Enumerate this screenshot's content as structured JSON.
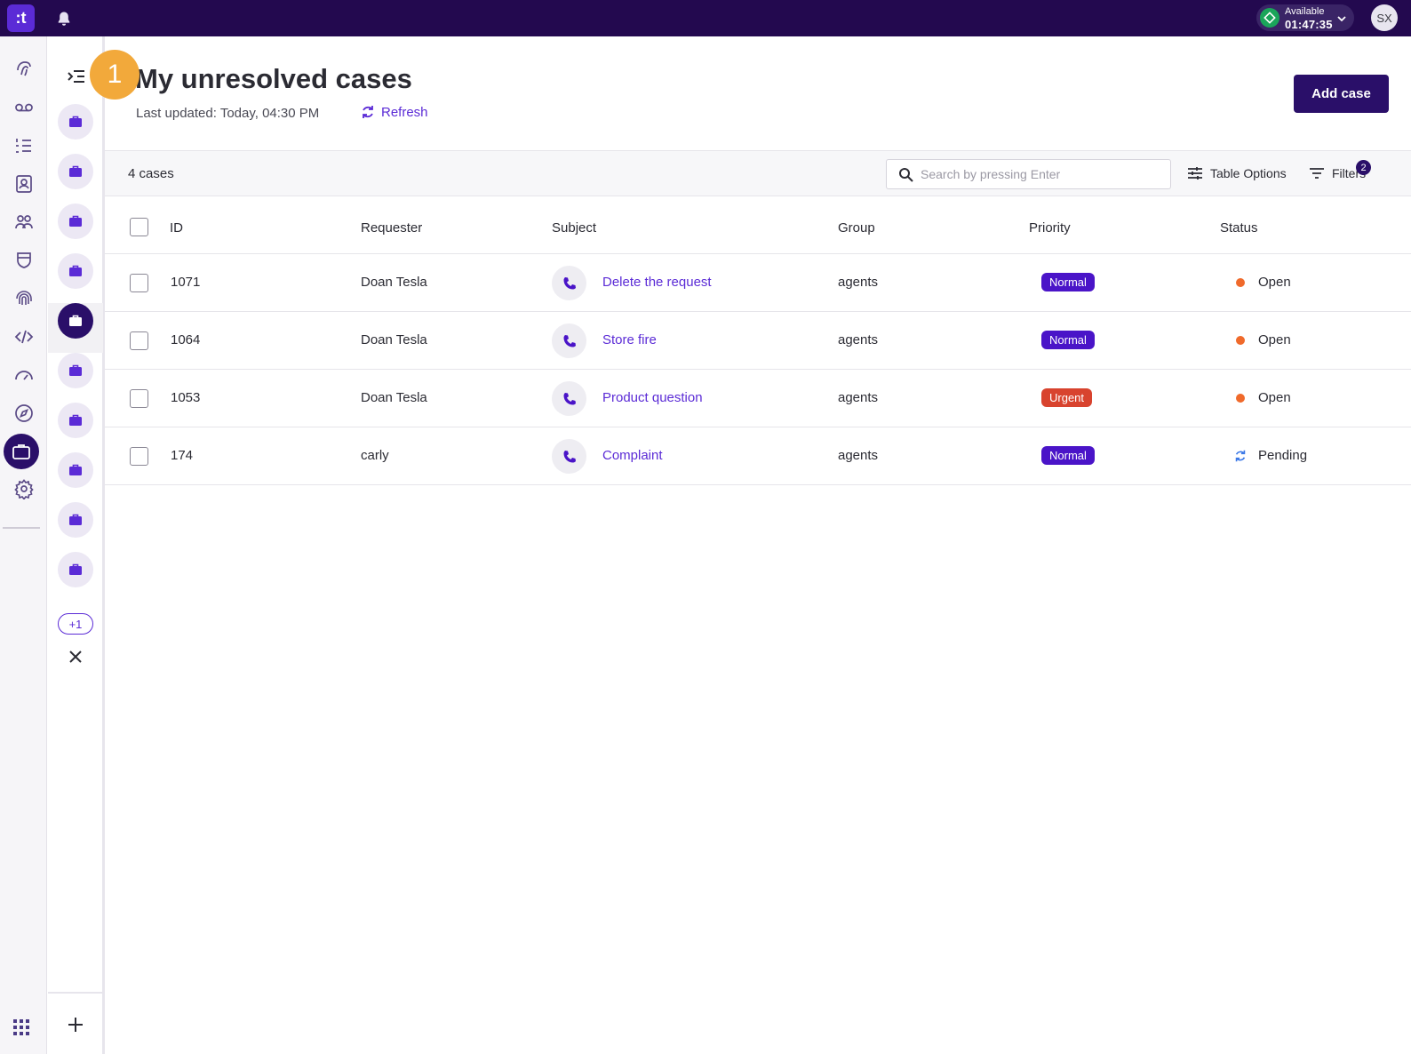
{
  "topbar": {
    "logo_text": ":t",
    "agent_status": "Available",
    "timer": "01:47:35",
    "avatar_initials": "SX"
  },
  "rail": {
    "icons": [
      "contacts-fingerprint-icon",
      "voicemail-icon",
      "list-icon",
      "contact-book-icon",
      "agents-icon",
      "shield-icon",
      "fingerprint-icon",
      "code-icon",
      "speedometer-icon",
      "compass-icon",
      "briefcase-icon",
      "gear-icon",
      "apps-grid-icon"
    ],
    "active": "briefcase-icon"
  },
  "panel": {
    "case_tab_count": 10,
    "active_tab_index": 4,
    "more_label": "+1"
  },
  "step_badge": "1",
  "header": {
    "title": "My unresolved cases",
    "last_updated_label": "Last updated:",
    "last_updated_value": "Today, 04:30 PM",
    "refresh_label": "Refresh",
    "add_case_label": "Add case"
  },
  "toolbar": {
    "case_count": "4 cases",
    "search_placeholder": "Search by pressing Enter",
    "table_options_label": "Table Options",
    "filters_label": "Filters",
    "filters_count": "2"
  },
  "table": {
    "columns": [
      "ID",
      "Requester",
      "Subject",
      "Group",
      "Priority",
      "Status"
    ],
    "rows": [
      {
        "id": "1071",
        "requester": "Doan Tesla",
        "subject": "Delete the request",
        "group": "agents",
        "priority": "Normal",
        "status": "Open"
      },
      {
        "id": "1064",
        "requester": "Doan Tesla",
        "subject": "Store fire",
        "group": "agents",
        "priority": "Normal",
        "status": "Open"
      },
      {
        "id": "1053",
        "requester": "Doan Tesla",
        "subject": "Product question",
        "group": "agents",
        "priority": "Urgent",
        "status": "Open"
      },
      {
        "id": "174",
        "requester": "carly",
        "subject": "Complaint",
        "group": "agents",
        "priority": "Normal",
        "status": "Pending"
      }
    ]
  },
  "colors": {
    "topbar": "#23094f",
    "accent": "#5b2bd6",
    "primary_dark": "#2a0f69",
    "priority_normal": "#4a14c8",
    "priority_urgent": "#d8432e",
    "status_open": "#f06a2b",
    "status_pending": "#3b78e7",
    "step_badge": "#f2a93b"
  }
}
